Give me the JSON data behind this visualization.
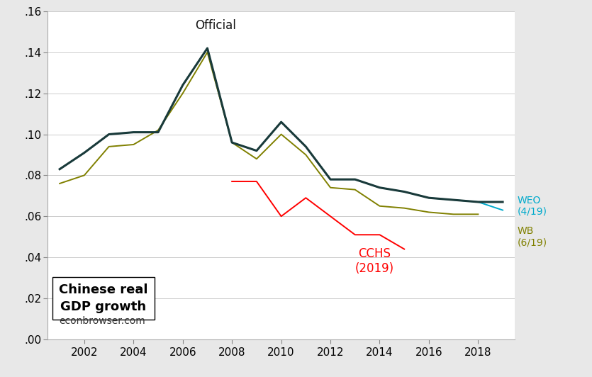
{
  "years_official": [
    2001,
    2002,
    2003,
    2004,
    2005,
    2006,
    2007,
    2008,
    2009,
    2010,
    2011,
    2012,
    2013,
    2014,
    2015,
    2016,
    2017,
    2018,
    2019
  ],
  "official": [
    0.083,
    0.091,
    0.1,
    0.101,
    0.101,
    0.124,
    0.142,
    0.096,
    0.092,
    0.106,
    0.094,
    0.078,
    0.078,
    0.074,
    0.072,
    0.069,
    0.068,
    0.067,
    0.067
  ],
  "years_weo": [
    2001,
    2002,
    2003,
    2004,
    2005,
    2006,
    2007,
    2008,
    2009,
    2010,
    2011,
    2012,
    2013,
    2014,
    2015,
    2016,
    2017,
    2018,
    2019
  ],
  "weo": [
    0.083,
    0.091,
    0.1,
    0.101,
    0.101,
    0.124,
    0.142,
    0.096,
    0.092,
    0.106,
    0.094,
    0.078,
    0.078,
    0.074,
    0.072,
    0.069,
    0.068,
    0.067,
    0.063
  ],
  "years_wb": [
    2001,
    2002,
    2003,
    2004,
    2005,
    2006,
    2007,
    2008,
    2009,
    2010,
    2011,
    2012,
    2013,
    2014,
    2015,
    2016,
    2017,
    2018
  ],
  "wb": [
    0.076,
    0.08,
    0.094,
    0.095,
    0.102,
    0.12,
    0.14,
    0.096,
    0.088,
    0.1,
    0.09,
    0.074,
    0.073,
    0.065,
    0.064,
    0.062,
    0.061,
    0.061
  ],
  "years_cchs": [
    2008,
    2009,
    2010,
    2011,
    2012,
    2013,
    2014,
    2015
  ],
  "cchs": [
    0.077,
    0.077,
    0.06,
    0.069,
    0.06,
    0.051,
    0.051,
    0.044
  ],
  "color_official": "#1a3a3a",
  "color_weo": "#00aacc",
  "color_wb": "#808000",
  "color_cchs": "#ff0000",
  "background_color": "#e8e8e8",
  "plot_bg": "#ffffff",
  "ylim": [
    0.0,
    0.16
  ],
  "xlim": [
    2000.5,
    2019.5
  ],
  "yticks": [
    0.0,
    0.02,
    0.04,
    0.06,
    0.08,
    0.1,
    0.12,
    0.14,
    0.16
  ],
  "xticks": [
    2002,
    2004,
    2006,
    2008,
    2010,
    2012,
    2014,
    2016,
    2018
  ],
  "label_official": "Official",
  "label_weo": "WEO\n(4/19)",
  "label_wb": "WB\n(6/19)",
  "label_cchs": "CCHS\n(2019)",
  "title_text": "Chinese real\nGDP growth",
  "source_text": "econbrowser.com"
}
